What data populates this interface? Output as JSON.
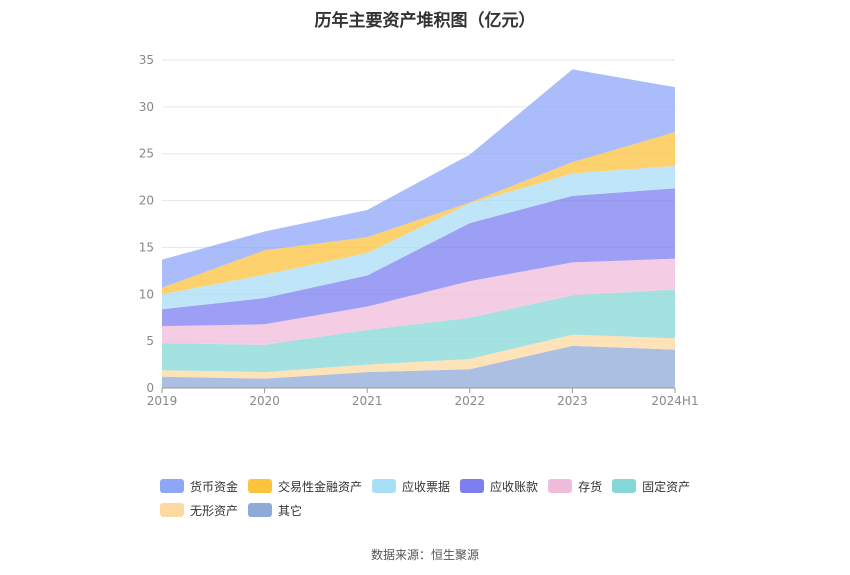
{
  "title": "历年主要资产堆积图（亿元）",
  "source_label": "数据来源：恒生聚源",
  "chart_data": {
    "type": "area",
    "stacked": true,
    "title": "历年主要资产堆积图（亿元）",
    "categories": [
      "2019",
      "2020",
      "2021",
      "2022",
      "2023",
      "2024H1"
    ],
    "ylim": [
      0,
      35
    ],
    "yticks": [
      0,
      5,
      10,
      15,
      20,
      25,
      30,
      35
    ],
    "grid": true,
    "legend_position": "bottom",
    "series": [
      {
        "name": "其它",
        "color": "#8fa9d9",
        "values": [
          1.2,
          1.0,
          1.7,
          2.0,
          4.5,
          4.1
        ]
      },
      {
        "name": "无形资产",
        "color": "#fdd9a0",
        "values": [
          0.7,
          0.7,
          0.8,
          1.1,
          1.2,
          1.2
        ]
      },
      {
        "name": "固定资产",
        "color": "#86d8d8",
        "values": [
          2.9,
          2.9,
          3.7,
          4.4,
          4.2,
          5.2
        ]
      },
      {
        "name": "存货",
        "color": "#f0bcdc",
        "values": [
          1.8,
          2.2,
          2.5,
          3.9,
          3.5,
          3.3
        ]
      },
      {
        "name": "应收账款",
        "color": "#7b7ff0",
        "values": [
          1.8,
          2.8,
          3.3,
          6.2,
          7.1,
          7.5
        ]
      },
      {
        "name": "应收票据",
        "color": "#a8def6",
        "values": [
          1.6,
          2.5,
          2.4,
          2.1,
          2.4,
          2.4
        ]
      },
      {
        "name": "交易性金融资产",
        "color": "#fcc33d",
        "values": [
          0.7,
          2.6,
          1.7,
          0.1,
          1.2,
          3.6
        ]
      },
      {
        "name": "货币资金",
        "color": "#8ea6f8",
        "values": [
          3.0,
          2.0,
          2.9,
          5.1,
          9.9,
          4.8
        ]
      }
    ]
  },
  "legend": [
    [
      {
        "name": "货币资金",
        "color": "#8ea6f8"
      },
      {
        "name": "交易性金融资产",
        "color": "#fcc33d"
      },
      {
        "name": "应收票据",
        "color": "#a8def6"
      },
      {
        "name": "应收账款",
        "color": "#7b7ff0"
      },
      {
        "name": "存货",
        "color": "#f0bcdc"
      },
      {
        "name": "固定资产",
        "color": "#86d8d8"
      }
    ],
    [
      {
        "name": "无形资产",
        "color": "#fdd9a0"
      },
      {
        "name": "其它",
        "color": "#8fa9d9"
      }
    ]
  ]
}
